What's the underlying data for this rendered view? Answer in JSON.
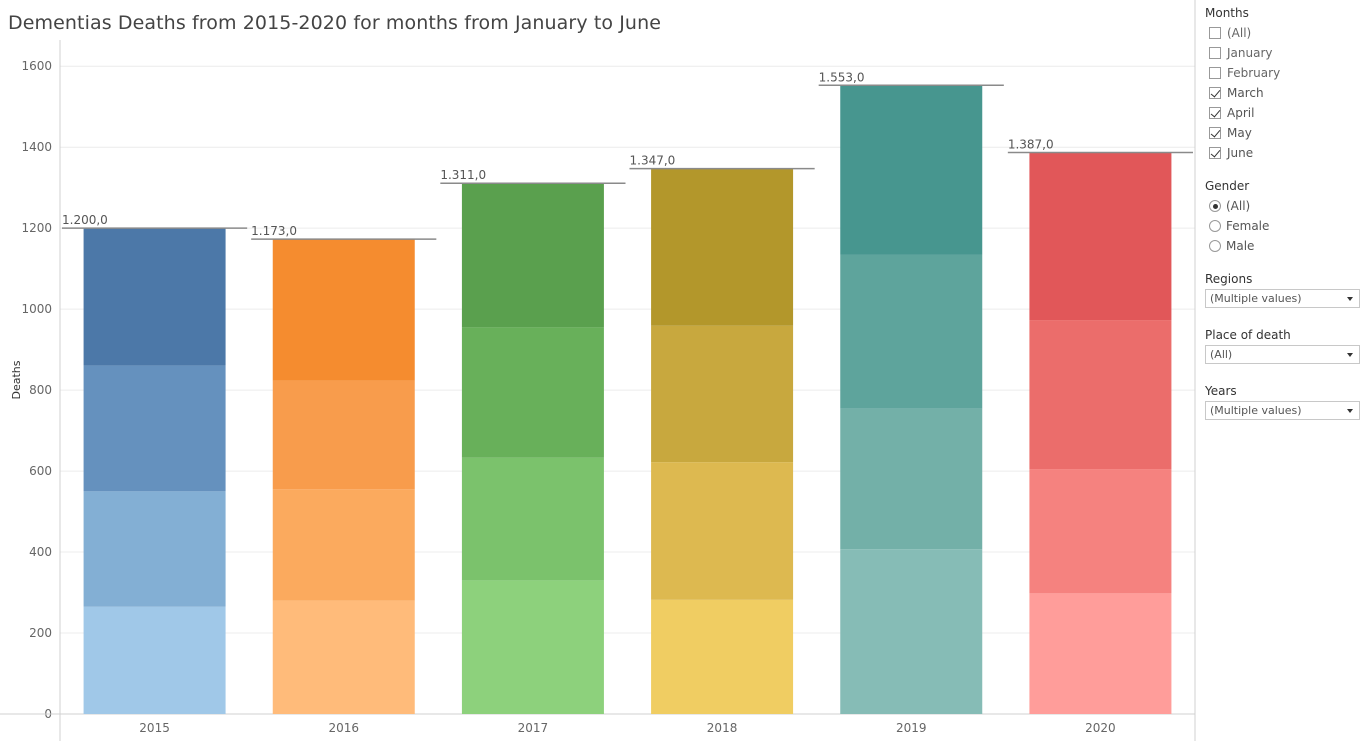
{
  "title": "Dementias Deaths from 2015-2020 for months from January to June",
  "chart_data": {
    "type": "bar",
    "stacked": true,
    "categories": [
      "2015",
      "2016",
      "2017",
      "2018",
      "2019",
      "2020"
    ],
    "ylabel": "Deaths",
    "xlabel": "",
    "ylim": [
      0,
      1650
    ],
    "yticks": [
      0,
      200,
      400,
      600,
      800,
      1000,
      1200,
      1400,
      1600
    ],
    "grid": true,
    "totals": [
      1200,
      1173,
      1311,
      1347,
      1553,
      1387
    ],
    "total_labels": [
      "1.200,0",
      "1.173,0",
      "1.311,0",
      "1.347,0",
      "1.553,0",
      "1.387,0"
    ],
    "series": [
      {
        "values": [
          265,
          280,
          330,
          282,
          407,
          298
        ]
      },
      {
        "values": [
          285,
          275,
          303,
          340,
          347,
          307
        ]
      },
      {
        "values": [
          311,
          268,
          322,
          337,
          380,
          368
        ]
      },
      {
        "values": [
          339,
          350,
          356,
          388,
          419,
          414
        ]
      }
    ],
    "colors": [
      [
        "#a0c8e8",
        "#83afd4",
        "#6591be",
        "#4c78a8"
      ],
      [
        "#ffbb7a",
        "#fbaa5e",
        "#f89c4c",
        "#f58c2f"
      ],
      [
        "#8dd17c",
        "#7bc26c",
        "#68b05a",
        "#5aa04e"
      ],
      [
        "#f0cd62",
        "#ddb950",
        "#c8a83e",
        "#b3972b"
      ],
      [
        "#86bcb6",
        "#73b0a8",
        "#5ea49c",
        "#47968f"
      ],
      [
        "#ff9d9a",
        "#f5827f",
        "#eb6d6b",
        "#e15759"
      ]
    ]
  },
  "filters": {
    "months": {
      "title": "Months",
      "options": [
        {
          "label": "(All)",
          "checked": false
        },
        {
          "label": "January",
          "checked": false
        },
        {
          "label": "February",
          "checked": false
        },
        {
          "label": "March",
          "checked": true
        },
        {
          "label": "April",
          "checked": true
        },
        {
          "label": "May",
          "checked": true
        },
        {
          "label": "June",
          "checked": true
        }
      ]
    },
    "gender": {
      "title": "Gender",
      "options": [
        {
          "label": "(All)",
          "selected": true
        },
        {
          "label": "Female",
          "selected": false
        },
        {
          "label": "Male",
          "selected": false
        }
      ]
    },
    "regions": {
      "title": "Regions",
      "value": "(Multiple values)"
    },
    "place_of_death": {
      "title": "Place of death",
      "value": "(All)"
    },
    "years": {
      "title": "Years",
      "value": "(Multiple values)"
    }
  }
}
